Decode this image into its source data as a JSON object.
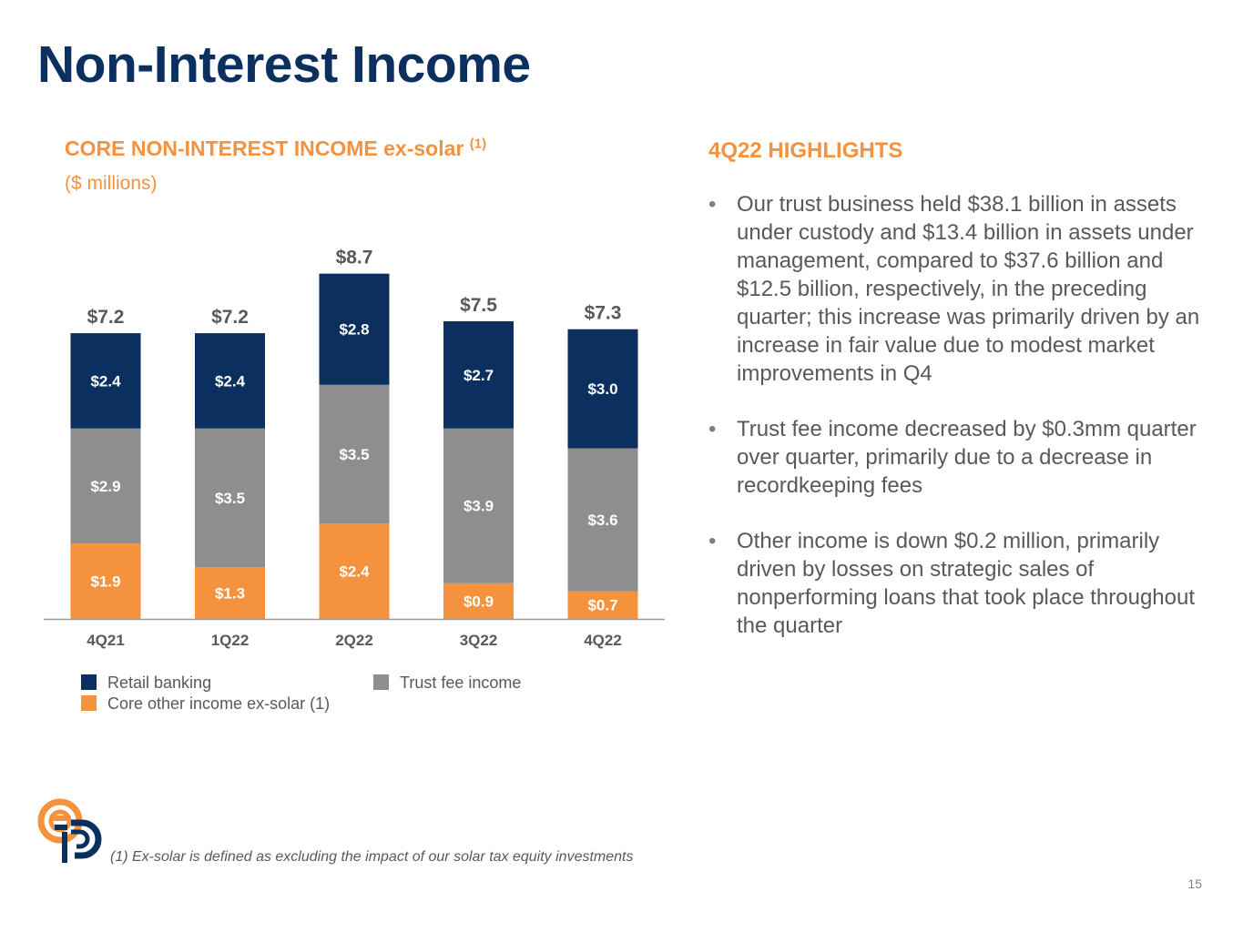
{
  "slide": {
    "title": "Non-Interest Income",
    "page_number": "15",
    "footnote": "(1) Ex-solar is defined as excluding the impact of our solar tax equity investments"
  },
  "chart_data": {
    "type": "bar",
    "stacked": true,
    "title": "CORE NON-INTEREST INCOME ex-solar",
    "title_superscript": "(1)",
    "subtitle": "($ millions)",
    "categories": [
      "4Q21",
      "1Q22",
      "2Q22",
      "3Q22",
      "4Q22"
    ],
    "series": [
      {
        "name": "Core other income ex-solar (1)",
        "color": "#f5923e",
        "values": [
          1.9,
          1.3,
          2.4,
          0.9,
          0.7
        ],
        "labels": [
          "$1.9",
          "$1.3",
          "$2.4",
          "$0.9",
          "$0.7"
        ]
      },
      {
        "name": "Trust fee income",
        "color": "#8e8e8e",
        "values": [
          2.9,
          3.5,
          3.5,
          3.9,
          3.6
        ],
        "labels": [
          "$2.9",
          "$3.5",
          "$3.5",
          "$3.9",
          "$3.6"
        ]
      },
      {
        "name": "Retail banking",
        "color": "#0b2f5e",
        "values": [
          2.4,
          2.4,
          2.8,
          2.7,
          3.0
        ],
        "labels": [
          "$2.4",
          "$2.4",
          "$2.8",
          "$2.7",
          "$3.0"
        ]
      }
    ],
    "totals": [
      "$7.2",
      "$7.2",
      "$8.7",
      "$7.5",
      "$7.3"
    ],
    "legend": [
      {
        "label": "Retail banking",
        "color": "#0b2f5e"
      },
      {
        "label": "Trust fee income",
        "color": "#8e8e8e"
      },
      {
        "label": "Core other income ex-solar (1)",
        "color": "#f5923e"
      }
    ]
  },
  "highlights": {
    "title": "4Q22 HIGHLIGHTS",
    "bullet_glyph": "•",
    "items": [
      "Our trust business held $38.1 billion in assets under custody and $13.4 billion in assets under management, compared to $37.6 billion and $12.5 billion, respectively, in the preceding quarter; this increase was primarily driven by an increase in fair value due to modest market improvements in Q4",
      "Trust fee income decreased by $0.3mm quarter over quarter, primarily due to a decrease in recordkeeping fees",
      "Other income is down $0.2 million, primarily driven by losses on strategic sales of nonperforming loans that took place throughout the quarter"
    ]
  },
  "colors": {
    "title_navy": "#0b2f5e",
    "accent_orange": "#f5923e",
    "text_gray": "#595959"
  }
}
